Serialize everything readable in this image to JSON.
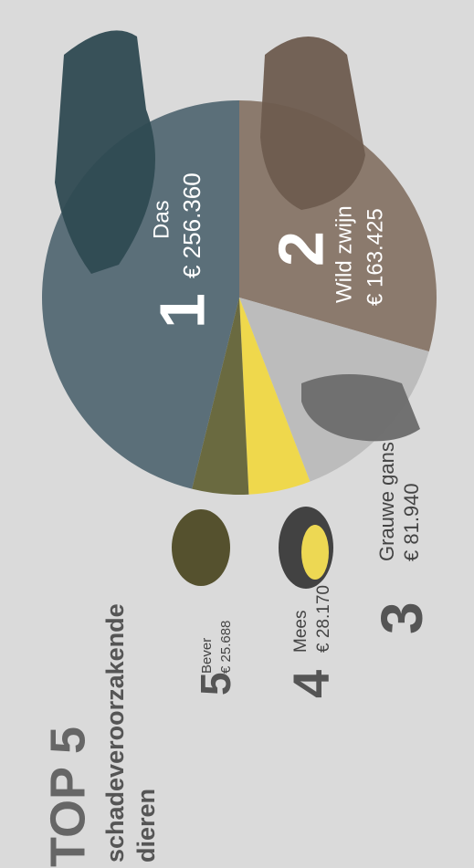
{
  "chart_data": {
    "type": "pie",
    "title": "TOP 5",
    "subtitle": [
      "schadeveroorzakende",
      "dieren"
    ],
    "categories": [
      "Das",
      "Wild zwijn",
      "Grauwe gans",
      "Mees",
      "Bever"
    ],
    "ranks": [
      1,
      2,
      3,
      4,
      5
    ],
    "values": [
      256360,
      163425,
      81940,
      28170,
      25688
    ],
    "value_labels": [
      "€ 256.360",
      "€ 163.425",
      "€ 81.940",
      "€ 28.170",
      "€ 25.688"
    ],
    "colors": [
      "#5b6f79",
      "#8b7a6d",
      "#bcbcbc",
      "#efd84c",
      "#6a6a40"
    ]
  }
}
